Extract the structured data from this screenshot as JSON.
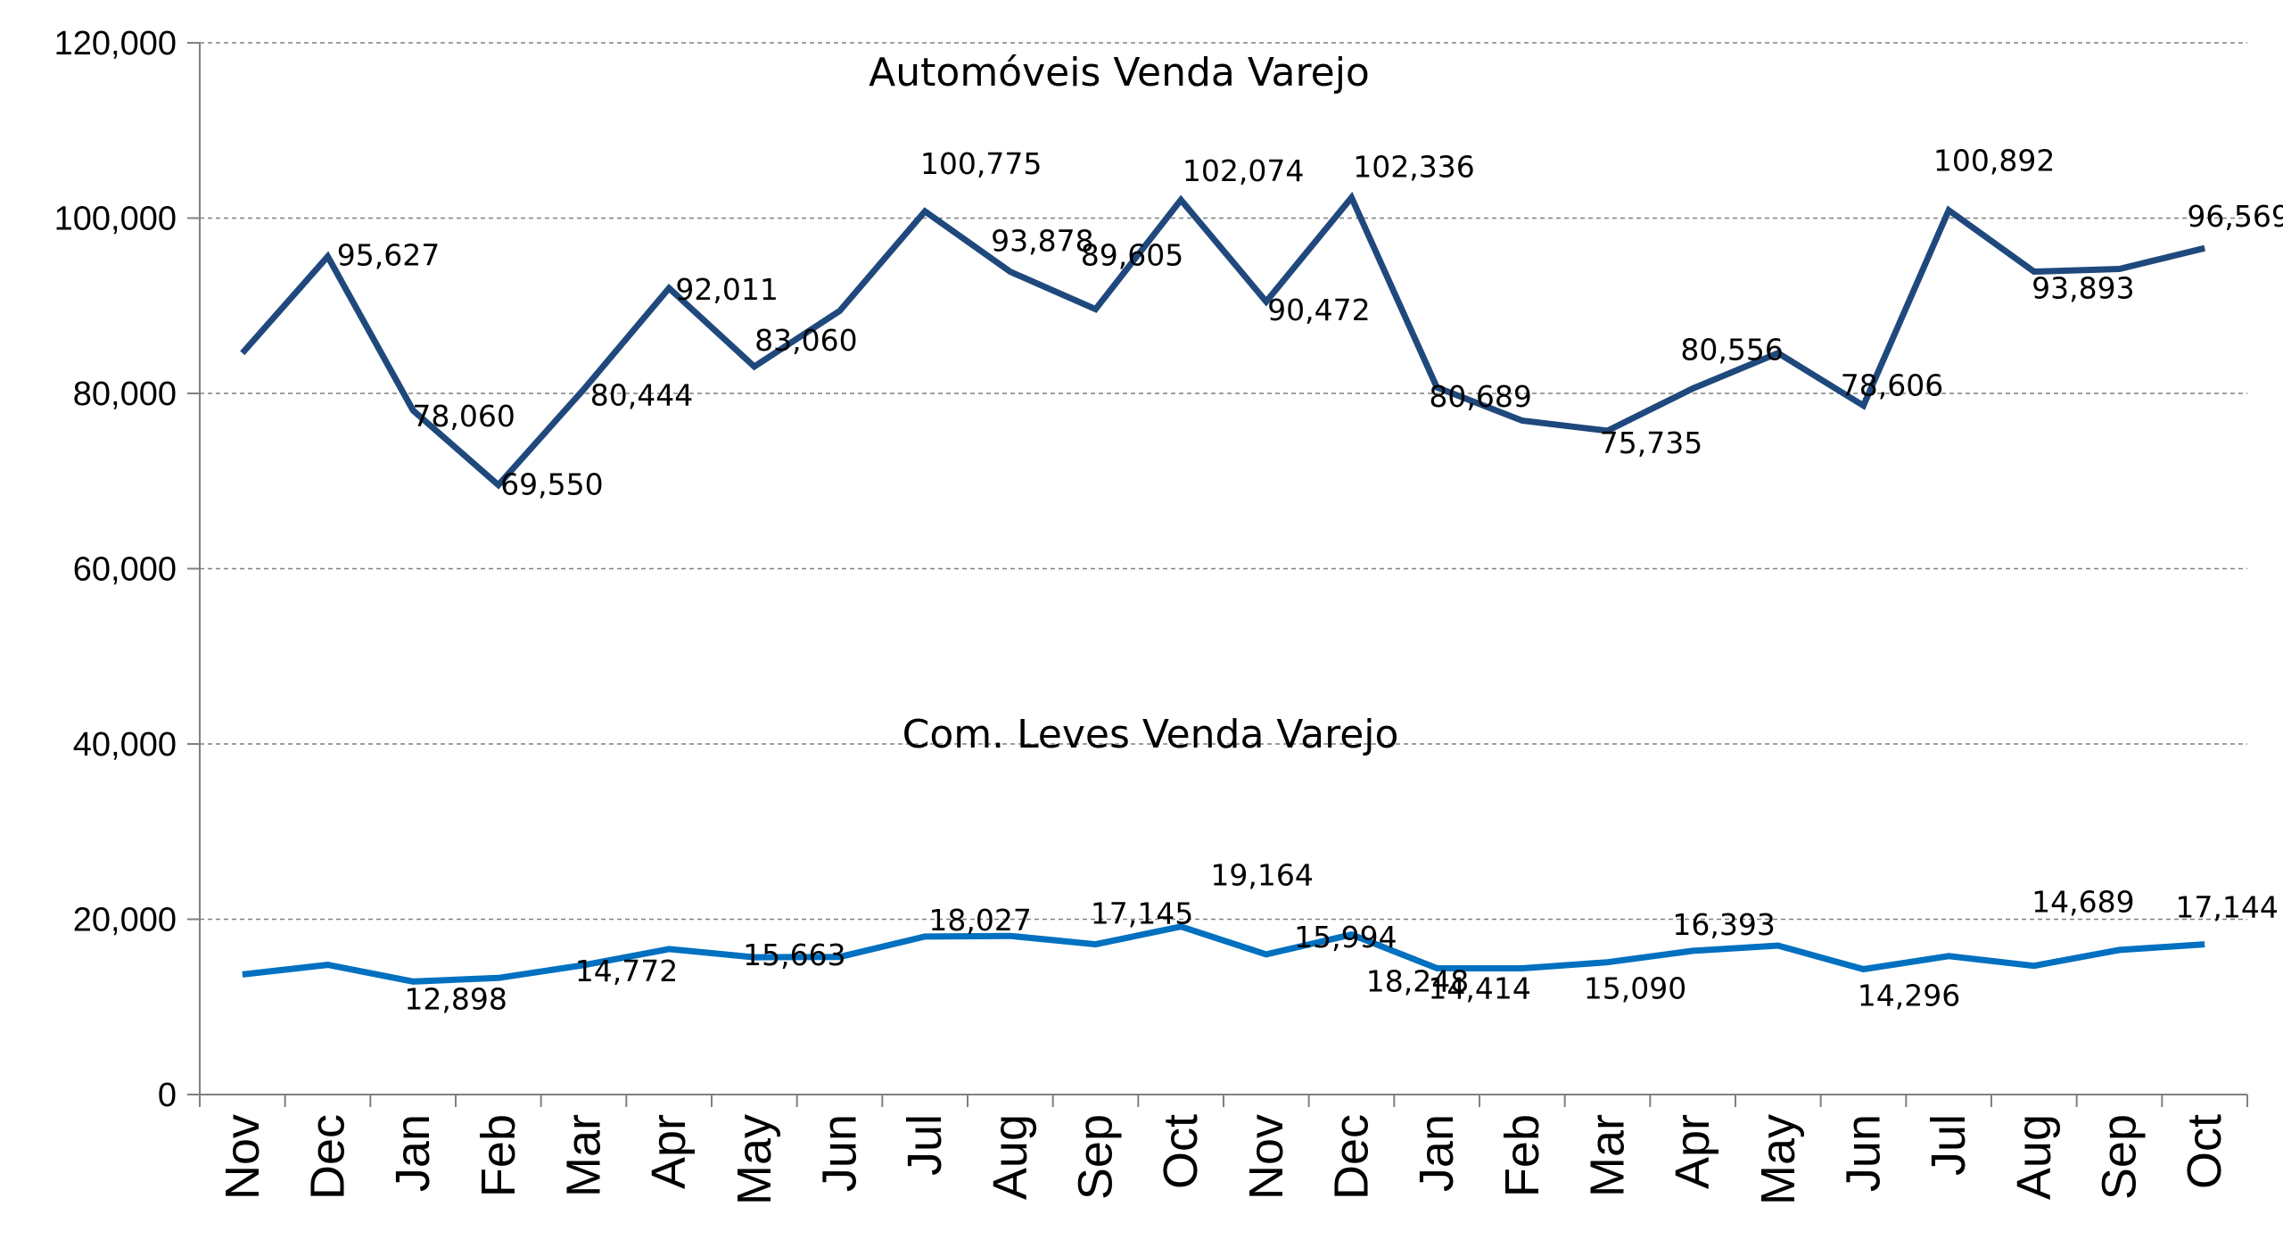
{
  "chart_data": {
    "type": "line",
    "title": "",
    "xlabel": "",
    "ylabel": "",
    "ylim": [
      0,
      120000
    ],
    "yticks": [
      "0",
      "20,000",
      "40,000",
      "60,000",
      "80,000",
      "100,000",
      "120,000"
    ],
    "ytick_values": [
      0,
      20000,
      40000,
      60000,
      80000,
      100000,
      120000
    ],
    "grid": true,
    "legend": "none",
    "categories": [
      "Nov",
      "Dec",
      "Jan",
      "Feb",
      "Mar",
      "Apr",
      "May",
      "Jun",
      "Jul",
      "Aug",
      "Sep",
      "Oct",
      "Nov",
      "Dec",
      "Jan",
      "Feb",
      "Mar",
      "Apr",
      "May",
      "Jun",
      "Jul",
      "Aug",
      "Sep",
      "Oct"
    ],
    "series": [
      {
        "name": "Automóveis Venda Varejo",
        "color": "#1F497D",
        "values": [
          84600,
          95627,
          78060,
          69550,
          80444,
          92011,
          83060,
          89400,
          100775,
          93878,
          89605,
          102074,
          90472,
          102336,
          80689,
          76900,
          75735,
          80556,
          84600,
          78606,
          100892,
          93893,
          94200,
          96569
        ],
        "labels": [
          "",
          "95,627",
          "78,060",
          "69,550",
          "80,444",
          "92,011",
          "83,060",
          "",
          "100,775",
          "93,878",
          "89,605",
          "102,074",
          "90,472",
          "102,336",
          "80,689",
          "",
          "75,735",
          "80,556",
          "",
          "78,606",
          "100,892",
          "93,893",
          "",
          "96,569"
        ]
      },
      {
        "name": "Com. Leves Venda Varejo",
        "color": "#0070C0",
        "values": [
          13700,
          14800,
          12898,
          13300,
          14772,
          16600,
          15663,
          15700,
          18027,
          18100,
          17145,
          19164,
          15994,
          18248,
          14414,
          14400,
          15090,
          16393,
          17000,
          14296,
          15800,
          14689,
          16500,
          17144
        ],
        "labels": [
          "",
          "",
          "12,898",
          "",
          "14,772",
          "",
          "15,663",
          "",
          "18,027",
          "",
          "17,145",
          "19,164",
          "15,994",
          "18,248",
          "14,414",
          "",
          "15,090",
          "16,393",
          "",
          "14,296",
          "",
          "14,689",
          "",
          "17,144"
        ]
      }
    ]
  }
}
